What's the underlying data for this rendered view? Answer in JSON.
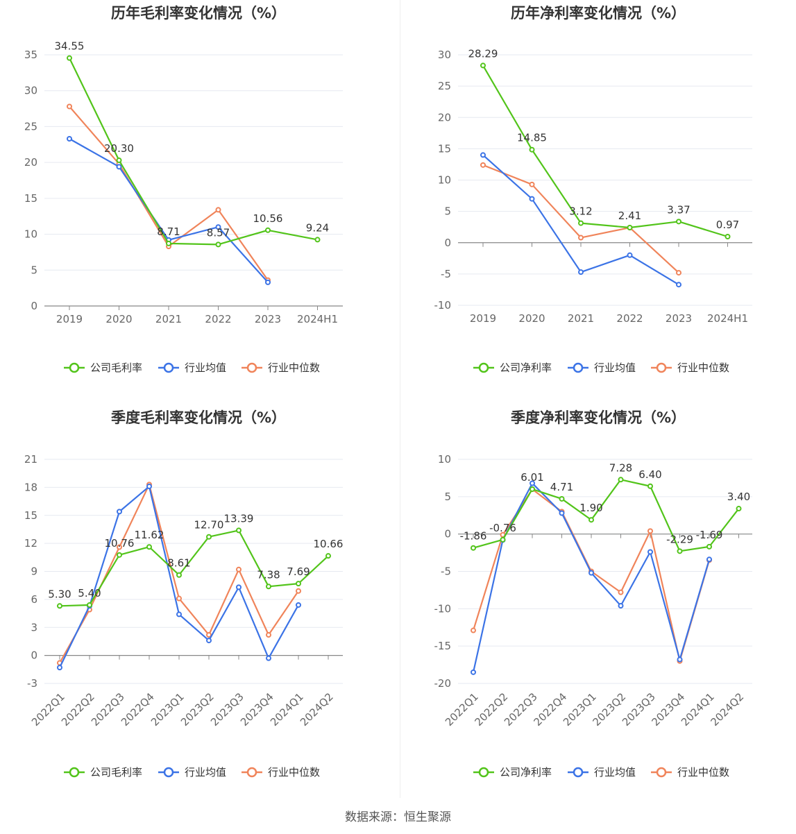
{
  "footer": "数据来源：恒生聚源",
  "legend_company_gross": "公司毛利率",
  "legend_company_net": "公司净利率",
  "legend_industry_avg": "行业均值",
  "legend_industry_median": "行业中位数",
  "colors": {
    "company": "#52c41a",
    "industry_avg": "#3b73e6",
    "industry_median": "#f0845a"
  },
  "chart_data": [
    {
      "type": "line",
      "title": "历年毛利率变化情况（%）",
      "categories": [
        "2019",
        "2020",
        "2021",
        "2022",
        "2023",
        "2024H1"
      ],
      "ylim": [
        0,
        35
      ],
      "yticks": [
        0,
        5,
        10,
        15,
        20,
        25,
        30,
        35
      ],
      "series": [
        {
          "name": "公司毛利率",
          "values": [
            34.55,
            20.3,
            8.71,
            8.57,
            10.56,
            9.24
          ],
          "labels": [
            "34.55",
            "20.30",
            "8.71",
            "8.57",
            "10.56",
            "9.24"
          ]
        },
        {
          "name": "行业均值",
          "values": [
            23.3,
            19.4,
            9.2,
            11.0,
            3.3,
            null
          ]
        },
        {
          "name": "行业中位数",
          "values": [
            27.8,
            19.8,
            8.3,
            13.4,
            3.6,
            null
          ]
        }
      ]
    },
    {
      "type": "line",
      "title": "历年净利率变化情况（%）",
      "categories": [
        "2019",
        "2020",
        "2021",
        "2022",
        "2023",
        "2024H1"
      ],
      "ylim": [
        -10,
        30
      ],
      "yticks": [
        -10,
        -5,
        0,
        5,
        10,
        15,
        20,
        25,
        30
      ],
      "series": [
        {
          "name": "公司净利率",
          "values": [
            28.29,
            14.85,
            3.12,
            2.41,
            3.37,
            0.97
          ],
          "labels": [
            "28.29",
            "14.85",
            "3.12",
            "2.41",
            "3.37",
            "0.97"
          ]
        },
        {
          "name": "行业均值",
          "values": [
            14.0,
            7.0,
            -4.7,
            -2.0,
            -6.7,
            null
          ]
        },
        {
          "name": "行业中位数",
          "values": [
            12.4,
            9.3,
            0.8,
            2.4,
            -4.8,
            null
          ]
        }
      ]
    },
    {
      "type": "line",
      "title": "季度毛利率变化情况（%）",
      "categories": [
        "2022Q1",
        "2022Q2",
        "2022Q3",
        "2022Q4",
        "2023Q1",
        "2023Q2",
        "2023Q3",
        "2023Q4",
        "2024Q1",
        "2024Q2"
      ],
      "ylim": [
        -3,
        21
      ],
      "yticks": [
        -3,
        0,
        3,
        6,
        9,
        12,
        15,
        18,
        21
      ],
      "series": [
        {
          "name": "公司毛利率",
          "values": [
            5.3,
            5.4,
            10.76,
            11.62,
            8.61,
            12.7,
            13.39,
            7.38,
            7.69,
            10.66
          ],
          "labels": [
            "5.30",
            "5.40",
            "10.76",
            "11.62",
            "8.61",
            "12.70",
            "13.39",
            "7.38",
            "7.69",
            "10.66"
          ]
        },
        {
          "name": "行业均值",
          "values": [
            -1.3,
            5.3,
            15.4,
            18.1,
            4.4,
            1.6,
            7.3,
            -0.3,
            5.4,
            null
          ]
        },
        {
          "name": "行业中位数",
          "values": [
            -0.8,
            4.9,
            11.6,
            18.3,
            6.1,
            2.2,
            9.2,
            2.2,
            6.9,
            null
          ]
        }
      ]
    },
    {
      "type": "line",
      "title": "季度净利率变化情况（%）",
      "categories": [
        "2022Q1",
        "2022Q2",
        "2022Q3",
        "2022Q4",
        "2023Q1",
        "2023Q2",
        "2023Q3",
        "2023Q4",
        "2024Q1",
        "2024Q2"
      ],
      "ylim": [
        -20,
        10
      ],
      "yticks": [
        -20,
        -15,
        -10,
        -5,
        0,
        5,
        10
      ],
      "series": [
        {
          "name": "公司净利率",
          "values": [
            -1.86,
            -0.76,
            6.01,
            4.71,
            1.9,
            7.28,
            6.4,
            -2.29,
            -1.69,
            3.4
          ],
          "labels": [
            "-1.86",
            "-0.76",
            "6.01",
            "4.71",
            "1.90",
            "7.28",
            "6.40",
            "-2.29",
            "-1.69",
            "3.40"
          ]
        },
        {
          "name": "行业均值",
          "values": [
            -18.5,
            -0.8,
            6.8,
            2.8,
            -5.2,
            -9.6,
            -2.4,
            -16.8,
            -3.4,
            null
          ]
        },
        {
          "name": "行业中位数",
          "values": [
            -12.9,
            -0.1,
            6.0,
            3.0,
            -5.0,
            -7.8,
            0.4,
            -17.0,
            -3.5,
            null
          ]
        }
      ]
    }
  ]
}
